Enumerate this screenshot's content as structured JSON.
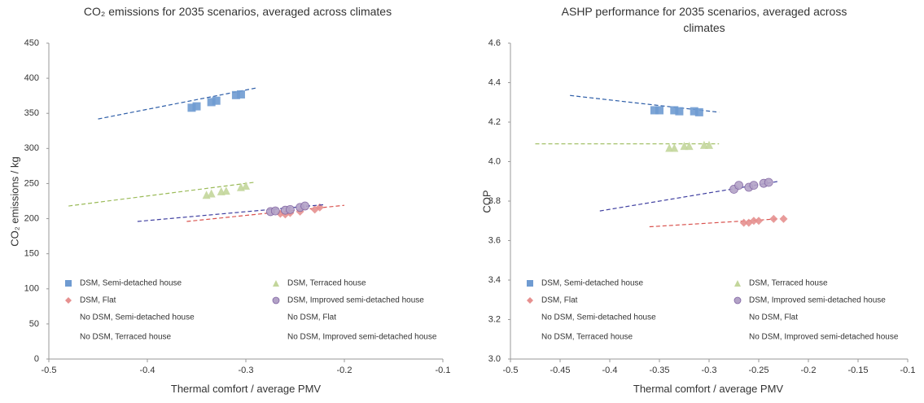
{
  "chart_data": [
    {
      "type": "scatter",
      "title": "CO₂ emissions for 2035 scenarios, averaged across climates",
      "x_label": "Thermal comfort / average PMV",
      "y_label": "CO₂ emissions / kg",
      "xlim": [
        -0.5,
        -0.1
      ],
      "xticks": [
        -0.5,
        -0.4,
        -0.3,
        -0.2,
        -0.1
      ],
      "ylim": [
        0,
        450
      ],
      "yticks": [
        0,
        50,
        100,
        150,
        200,
        250,
        300,
        350,
        400,
        450
      ],
      "series": [
        {
          "name": "DSM, Semi-detached house",
          "marker": "square",
          "color": "#6f9bd1",
          "trend_color": "#2e5ea8",
          "x": [
            -0.355,
            -0.35,
            -0.335,
            -0.33,
            -0.31,
            -0.305
          ],
          "values": [
            358,
            360,
            366,
            368,
            376,
            377
          ],
          "trend": {
            "x": [
              -0.45,
              -0.29
            ],
            "values": [
              342,
              386
            ]
          }
        },
        {
          "name": "DSM, Terraced house",
          "marker": "triangle",
          "color": "#c3d69b",
          "trend_color": "#9bbb59",
          "x": [
            -0.34,
            -0.335,
            -0.325,
            -0.32,
            -0.305,
            -0.3
          ],
          "values": [
            234,
            236,
            239,
            240,
            245,
            247
          ],
          "trend": {
            "x": [
              -0.48,
              -0.29
            ],
            "values": [
              218,
              252
            ]
          }
        },
        {
          "name": "DSM, Flat",
          "marker": "diamond",
          "color": "#e6908f",
          "trend_color": "#d9534f",
          "x": [
            -0.265,
            -0.26,
            -0.255,
            -0.245,
            -0.23,
            -0.225
          ],
          "values": [
            207,
            206,
            208,
            210,
            213,
            216
          ],
          "trend": {
            "x": [
              -0.36,
              -0.2
            ],
            "values": [
              196,
              219
            ]
          }
        },
        {
          "name": "DSM, Improved semi-detached house",
          "marker": "circle",
          "color": "#b3a2c7",
          "trend_color": "#3f3fa0",
          "x": [
            -0.275,
            -0.27,
            -0.26,
            -0.255,
            -0.245,
            -0.24
          ],
          "values": [
            210,
            211,
            212,
            213,
            216,
            218
          ],
          "trend": {
            "x": [
              -0.41,
              -0.22
            ],
            "values": [
              196,
              220
            ]
          }
        },
        {
          "name": "No DSM, Semi-detached house",
          "x": [],
          "values": []
        },
        {
          "name": "No DSM, Flat",
          "x": [],
          "values": []
        },
        {
          "name": "No DSM, Terraced house",
          "x": [],
          "values": []
        },
        {
          "name": "No DSM, Improved semi-detached house",
          "x": [],
          "values": []
        }
      ]
    },
    {
      "type": "scatter",
      "title": "ASHP performance for 2035 scenarios, averaged across climates",
      "x_label": "Thermal comfort / average PMV",
      "y_label": "COP",
      "xlim": [
        -0.5,
        -0.1
      ],
      "xticks": [
        -0.5,
        -0.45,
        -0.4,
        -0.35,
        -0.3,
        -0.25,
        -0.2,
        -0.15,
        -0.1
      ],
      "ylim": [
        3,
        4.6
      ],
      "yticks": [
        {
          "value": 3,
          "label": "3.0"
        },
        3.2,
        3.4,
        3.6,
        3.8,
        {
          "value": 4,
          "label": "4.0"
        },
        4.2,
        4.4,
        4.6
      ],
      "series": [
        {
          "name": "DSM, Semi-detached house",
          "marker": "square",
          "color": "#6f9bd1",
          "trend_color": "#2e5ea8",
          "x": [
            -0.355,
            -0.35,
            -0.335,
            -0.33,
            -0.315,
            -0.31
          ],
          "values": [
            4.26,
            4.26,
            4.26,
            4.255,
            4.255,
            4.25
          ],
          "trend": {
            "x": [
              -0.44,
              -0.29
            ],
            "values": [
              4.335,
              4.25
            ]
          }
        },
        {
          "name": "DSM, Terraced house",
          "marker": "triangle",
          "color": "#c3d69b",
          "trend_color": "#9bbb59",
          "x": [
            -0.34,
            -0.335,
            -0.325,
            -0.32,
            -0.305,
            -0.3
          ],
          "values": [
            4.07,
            4.07,
            4.08,
            4.08,
            4.085,
            4.085
          ],
          "trend": {
            "x": [
              -0.475,
              -0.29
            ],
            "values": [
              4.09,
              4.09
            ]
          }
        },
        {
          "name": "DSM, Flat",
          "marker": "diamond",
          "color": "#e6908f",
          "trend_color": "#d9534f",
          "x": [
            -0.265,
            -0.26,
            -0.255,
            -0.25,
            -0.235,
            -0.225
          ],
          "values": [
            3.69,
            3.69,
            3.7,
            3.7,
            3.71,
            3.71
          ],
          "trend": {
            "x": [
              -0.36,
              -0.23
            ],
            "values": [
              3.67,
              3.71
            ]
          }
        },
        {
          "name": "DSM, Improved semi-detached house",
          "marker": "circle",
          "color": "#b3a2c7",
          "trend_color": "#3f3fa0",
          "x": [
            -0.275,
            -0.27,
            -0.26,
            -0.255,
            -0.245,
            -0.24
          ],
          "values": [
            3.86,
            3.88,
            3.87,
            3.88,
            3.89,
            3.895
          ],
          "trend": {
            "x": [
              -0.41,
              -0.23
            ],
            "values": [
              3.75,
              3.9
            ]
          }
        },
        {
          "name": "No DSM, Semi-detached house",
          "x": [],
          "values": []
        },
        {
          "name": "No DSM, Flat",
          "x": [],
          "values": []
        },
        {
          "name": "No DSM, Terraced house",
          "x": [],
          "values": []
        },
        {
          "name": "No DSM, Improved semi-detached house",
          "x": [],
          "values": []
        }
      ]
    }
  ]
}
